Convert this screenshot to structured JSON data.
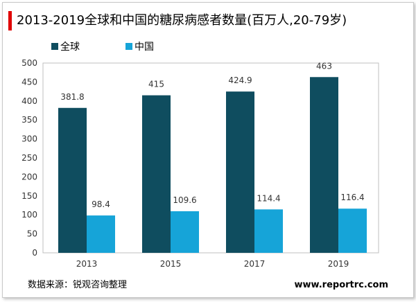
{
  "title": "2013-2019全球和中国的糖尿病感者数量(百万人,20-79岁)",
  "source": "数据来源：锐观咨询整理",
  "website": "www.reportrc.com",
  "colors": {
    "global": "#0f4d5f",
    "china": "#16a4d8",
    "accent": "#e00000"
  },
  "chart_data": {
    "type": "bar",
    "title": "2013-2019全球和中国的糖尿病感者数量(百万人,20-79岁)",
    "categories": [
      "2013",
      "2015",
      "2017",
      "2019"
    ],
    "series": [
      {
        "name": "全球",
        "values": [
          381.8,
          415,
          424.9,
          463
        ],
        "labels": [
          "381.8",
          "415",
          "424.9",
          "463"
        ]
      },
      {
        "name": "中国",
        "values": [
          98.4,
          109.6,
          114.4,
          116.4
        ],
        "labels": [
          "98.4",
          "109.6",
          "114.4",
          "116.4"
        ]
      }
    ],
    "ylim": [
      0,
      500
    ],
    "yticks": [
      "0",
      "50",
      "100",
      "150",
      "200",
      "250",
      "300",
      "350",
      "400",
      "450",
      "500"
    ],
    "xlabel": "",
    "ylabel": "",
    "grid": false,
    "legend": "top-left"
  }
}
